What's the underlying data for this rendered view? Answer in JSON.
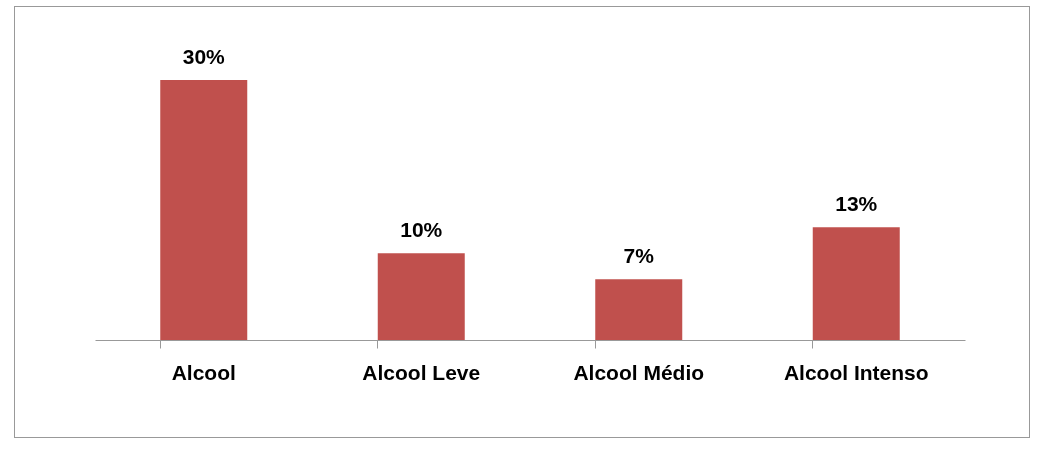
{
  "chart_data": {
    "type": "bar",
    "categories": [
      "Alcool",
      "Alcool Leve",
      "Alcool Médio",
      "Alcool Intenso"
    ],
    "values": [
      30,
      10,
      7,
      13
    ],
    "value_labels": [
      "30%",
      "10%",
      "7%",
      "13%"
    ],
    "color": "#c0504d"
  }
}
